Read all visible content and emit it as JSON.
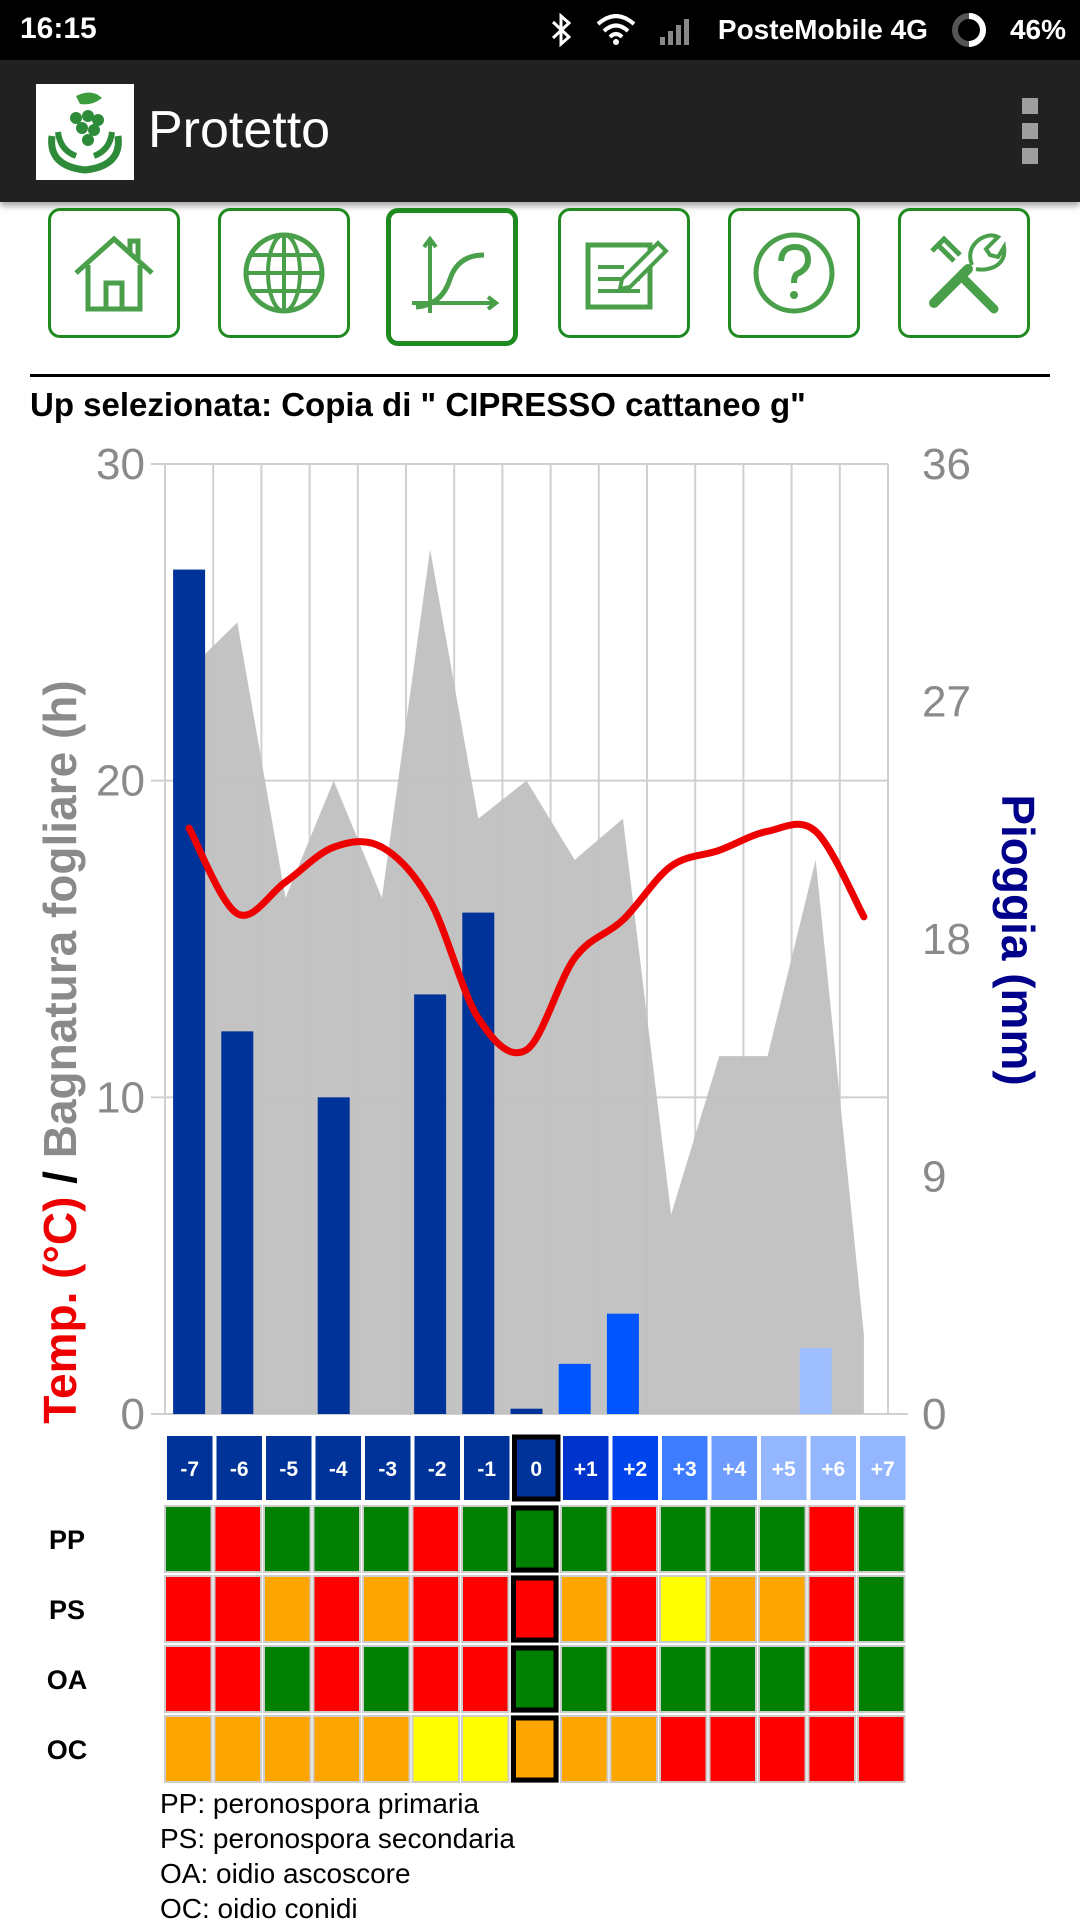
{
  "status_bar": {
    "time": "16:15",
    "carrier": "PosteMobile 4G",
    "battery": "46%"
  },
  "app_bar": {
    "title": "Protetto"
  },
  "toolbar": {
    "buttons": [
      {
        "name": "home",
        "icon": "home-icon",
        "active": false
      },
      {
        "name": "map",
        "icon": "globe-icon",
        "active": false
      },
      {
        "name": "charts",
        "icon": "curve-chart-icon",
        "active": true
      },
      {
        "name": "notes",
        "icon": "edit-document-icon",
        "active": false
      },
      {
        "name": "help",
        "icon": "question-icon",
        "active": false
      },
      {
        "name": "settings",
        "icon": "tools-icon",
        "active": false
      }
    ]
  },
  "selected_up": "Up selezionata: Copia di \" CIPRESSO cattaneo g\"",
  "axis_titles": {
    "left_temp": "Temp. (°C)",
    "left_separator": " / ",
    "left_wetness": "Bagnatura fogliare (h)",
    "right": "Pioggia (mm)"
  },
  "chart_data": {
    "type": "bar",
    "categories": [
      "-7",
      "-6",
      "-5",
      "-4",
      "-3",
      "-2",
      "-1",
      "0",
      "+1",
      "+2",
      "+3",
      "+4",
      "+5",
      "+6",
      "+7"
    ],
    "left_axis": {
      "min": 0,
      "max": 30,
      "ticks": [
        "0",
        "10",
        "20",
        "30"
      ]
    },
    "right_axis": {
      "min": 0,
      "max": 36,
      "ticks": [
        "0",
        "9",
        "18",
        "27",
        "36"
      ]
    },
    "series": [
      {
        "name": "Pioggia (mm)",
        "kind": "bar",
        "axis": "right",
        "values": [
          32.0,
          14.5,
          0,
          12.0,
          0,
          15.9,
          19.0,
          0.2,
          1.9,
          3.8,
          0,
          0,
          0,
          2.5,
          0
        ]
      },
      {
        "name": "Bagnatura fogliare (h)",
        "kind": "area",
        "axis": "left",
        "values": [
          23.5,
          25.0,
          16.3,
          20.0,
          16.3,
          27.3,
          18.8,
          20.0,
          17.5,
          18.8,
          6.3,
          11.3,
          11.3,
          17.5,
          2.5
        ]
      },
      {
        "name": "Temp. (°C)",
        "kind": "line",
        "axis": "left",
        "values": [
          18.5,
          15.8,
          16.8,
          17.9,
          17.9,
          16.2,
          12.5,
          11.5,
          14.4,
          15.6,
          17.3,
          17.8,
          18.4,
          18.4,
          15.7
        ]
      }
    ],
    "colors": {
      "rain_past": "#003399",
      "rain_future": [
        "#0055ff",
        "#0055ff",
        "#9ebeff",
        "#9ebeff",
        "#9ebeff"
      ],
      "wetness": "#c0c0c0",
      "temp": "#ee0000",
      "grid": "#d0d0d0",
      "tick_text": "#8a8a8a"
    },
    "day_colors": [
      "#003399",
      "#003399",
      "#003399",
      "#003399",
      "#003399",
      "#003399",
      "#003399",
      "#003399",
      "#0033cc",
      "#0044ee",
      "#3d7cff",
      "#6e9cff",
      "#93b6ff",
      "#93b6ff",
      "#93b6ff"
    ],
    "selected_day": "0"
  },
  "disease_matrix": {
    "rows": [
      {
        "label": "PP",
        "cells": [
          "green",
          "red",
          "green",
          "green",
          "green",
          "red",
          "green",
          "green",
          "green",
          "red",
          "green",
          "green",
          "green",
          "red",
          "green"
        ]
      },
      {
        "label": "PS",
        "cells": [
          "red",
          "red",
          "orange",
          "red",
          "orange",
          "red",
          "red",
          "red",
          "orange",
          "red",
          "yellow",
          "orange",
          "orange",
          "red",
          "green"
        ]
      },
      {
        "label": "OA",
        "cells": [
          "red",
          "red",
          "green",
          "red",
          "green",
          "red",
          "red",
          "green",
          "green",
          "red",
          "green",
          "green",
          "green",
          "red",
          "green"
        ]
      },
      {
        "label": "OC",
        "cells": [
          "orange",
          "orange",
          "orange",
          "orange",
          "orange",
          "yellow",
          "yellow",
          "orange",
          "orange",
          "orange",
          "red",
          "red",
          "red",
          "red",
          "red"
        ]
      }
    ],
    "palette": {
      "green": "#008000",
      "red": "#ff0000",
      "orange": "#ffa500",
      "yellow": "#ffff00"
    }
  },
  "legend": [
    "PP: peronospora primaria",
    "PS: peronospora secondaria",
    "OA: oidio ascoscore",
    "OC: oidio conidi"
  ]
}
